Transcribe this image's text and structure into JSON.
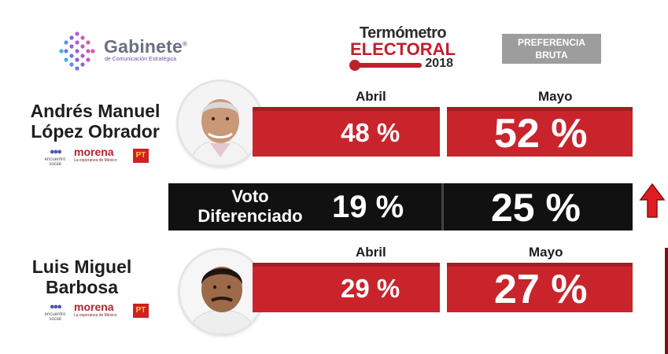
{
  "header": {
    "brand_name": "Gabinete",
    "brand_mark": "®",
    "brand_subtitle": "de Comunicación Estratégica",
    "thermo_line1": "Termómetro",
    "thermo_line2": "ELECTORAL",
    "thermo_year": "2018",
    "pref_line1": "PREFERENCIA",
    "pref_line2": "BRUTA"
  },
  "candidates": [
    {
      "name_line1": "Andrés Manuel",
      "name_line2": "López Obrador",
      "april_label": "Abril",
      "may_label": "Mayo",
      "april_value": "48 %",
      "may_value": "52 %",
      "party_logos": {
        "encuentro": "encuentro",
        "encuentro_sub": "social",
        "morena": "morena",
        "morena_sub": "La esperanza de México",
        "pt": "PT"
      }
    },
    {
      "name_line1": "Luis Miguel",
      "name_line2": "Barbosa",
      "april_label": "Abril",
      "may_label": "Mayo",
      "april_value": "29 %",
      "may_value": "27 %",
      "party_logos": {
        "encuentro": "encuentro",
        "encuentro_sub": "social",
        "morena": "morena",
        "morena_sub": "La esperanza de México",
        "pt": "PT"
      }
    }
  ],
  "split_vote": {
    "label_line1": "Voto",
    "label_line2": "Diferenciado",
    "april_value": "19 %",
    "may_value": "25 %",
    "trend_icon": "arrow-up-icon"
  },
  "colors": {
    "bar_red": "#c9242c",
    "split_bar": "#111111",
    "brand_gray": "#6b6f86",
    "pref_gray": "#9d9d9d"
  }
}
